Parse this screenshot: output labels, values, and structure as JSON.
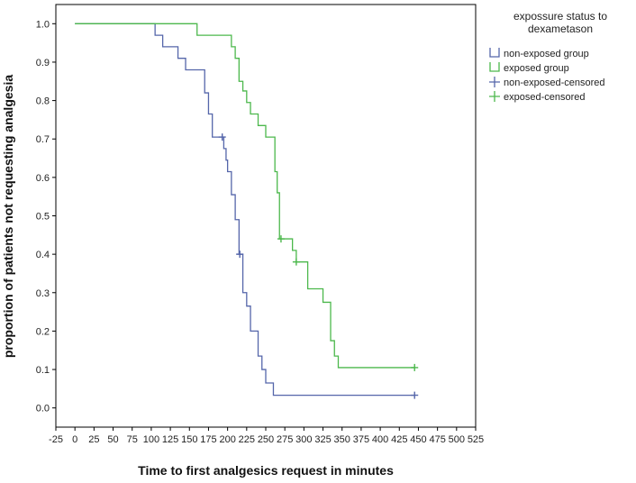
{
  "chart_data": {
    "type": "line",
    "xlabel": "Time to first analgesics request  in minutes",
    "ylabel": "proportion of patients not requesting analgesia",
    "xlim": [
      -25,
      525
    ],
    "ylim": [
      -0.05,
      1.05
    ],
    "x_ticks": [
      "-25",
      "0",
      "25",
      "50",
      "75",
      "100",
      "125",
      "150",
      "175",
      "200",
      "225",
      "250",
      "275",
      "300",
      "325",
      "350",
      "375",
      "400",
      "425",
      "450",
      "475",
      "500",
      "525"
    ],
    "y_ticks": [
      "0.0",
      "0.1",
      "0.2",
      "0.3",
      "0.4",
      "0.5",
      "0.6",
      "0.7",
      "0.8",
      "0.9",
      "1.0"
    ],
    "legend": {
      "title_lines": [
        "expossure status to",
        "dexametason"
      ],
      "placement": "right",
      "entries": [
        {
          "label": "non-exposed group",
          "color": "#5566aa",
          "symbol": "step"
        },
        {
          "label": "exposed group",
          "color": "#4cb84c",
          "symbol": "step"
        },
        {
          "label": "non-exposed-censored",
          "color": "#5566aa",
          "symbol": "plus"
        },
        {
          "label": "exposed-censored",
          "color": "#4cb84c",
          "symbol": "plus"
        }
      ]
    },
    "series": [
      {
        "color": "#5566aa",
        "steps": [
          [
            0,
            1.0
          ],
          [
            105,
            0.97
          ],
          [
            115,
            0.94
          ],
          [
            135,
            0.91
          ],
          [
            145,
            0.88
          ],
          [
            170,
            0.82
          ],
          [
            175,
            0.765
          ],
          [
            180,
            0.705
          ],
          [
            195,
            0.675
          ],
          [
            198,
            0.645
          ],
          [
            200,
            0.615
          ],
          [
            205,
            0.555
          ],
          [
            210,
            0.49
          ],
          [
            215,
            0.4
          ],
          [
            220,
            0.3
          ],
          [
            225,
            0.265
          ],
          [
            230,
            0.2
          ],
          [
            240,
            0.135
          ],
          [
            245,
            0.1
          ],
          [
            250,
            0.065
          ],
          [
            260,
            0.033
          ],
          [
            445,
            0.033
          ]
        ],
        "censored": [
          [
            193,
            0.705
          ],
          [
            216,
            0.4
          ],
          [
            445,
            0.033
          ]
        ]
      },
      {
        "color": "#4cb84c",
        "steps": [
          [
            0,
            1.0
          ],
          [
            160,
            0.97
          ],
          [
            205,
            0.94
          ],
          [
            210,
            0.91
          ],
          [
            215,
            0.85
          ],
          [
            220,
            0.825
          ],
          [
            225,
            0.795
          ],
          [
            230,
            0.765
          ],
          [
            240,
            0.735
          ],
          [
            250,
            0.705
          ],
          [
            262,
            0.615
          ],
          [
            265,
            0.56
          ],
          [
            268,
            0.44
          ],
          [
            285,
            0.41
          ],
          [
            290,
            0.38
          ],
          [
            305,
            0.31
          ],
          [
            325,
            0.275
          ],
          [
            335,
            0.175
          ],
          [
            340,
            0.135
          ],
          [
            345,
            0.105
          ],
          [
            445,
            0.105
          ]
        ],
        "censored": [
          [
            270,
            0.44
          ],
          [
            290,
            0.38
          ],
          [
            445,
            0.105
          ]
        ]
      }
    ]
  }
}
